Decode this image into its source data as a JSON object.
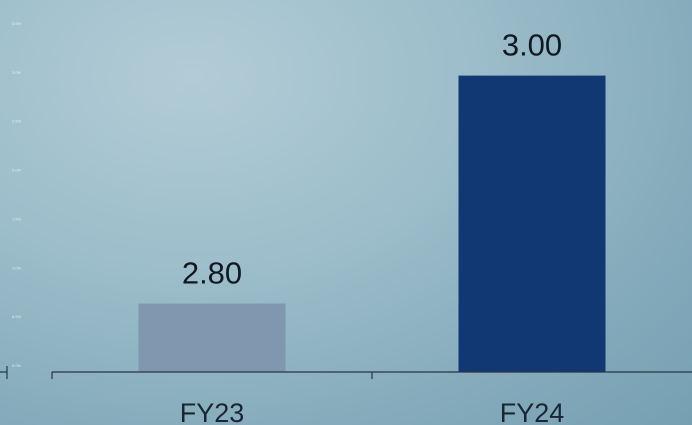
{
  "chart_data": {
    "type": "bar",
    "title": "",
    "xlabel": "",
    "ylabel": "",
    "categories": [
      "FY23",
      "FY24"
    ],
    "values": [
      2.8,
      3.0
    ],
    "value_labels": [
      "2.80",
      "3.00"
    ],
    "ylim": [
      2.74,
      3.04
    ],
    "bar_colors": [
      "#7f97af",
      "#123873"
    ],
    "yticks": [
      "0.0%",
      "0.5%",
      "1.0%",
      "1.5%",
      "2.0%",
      "2.5%",
      "3.0%",
      "3.5%"
    ],
    "grid": false,
    "legend": "none"
  }
}
